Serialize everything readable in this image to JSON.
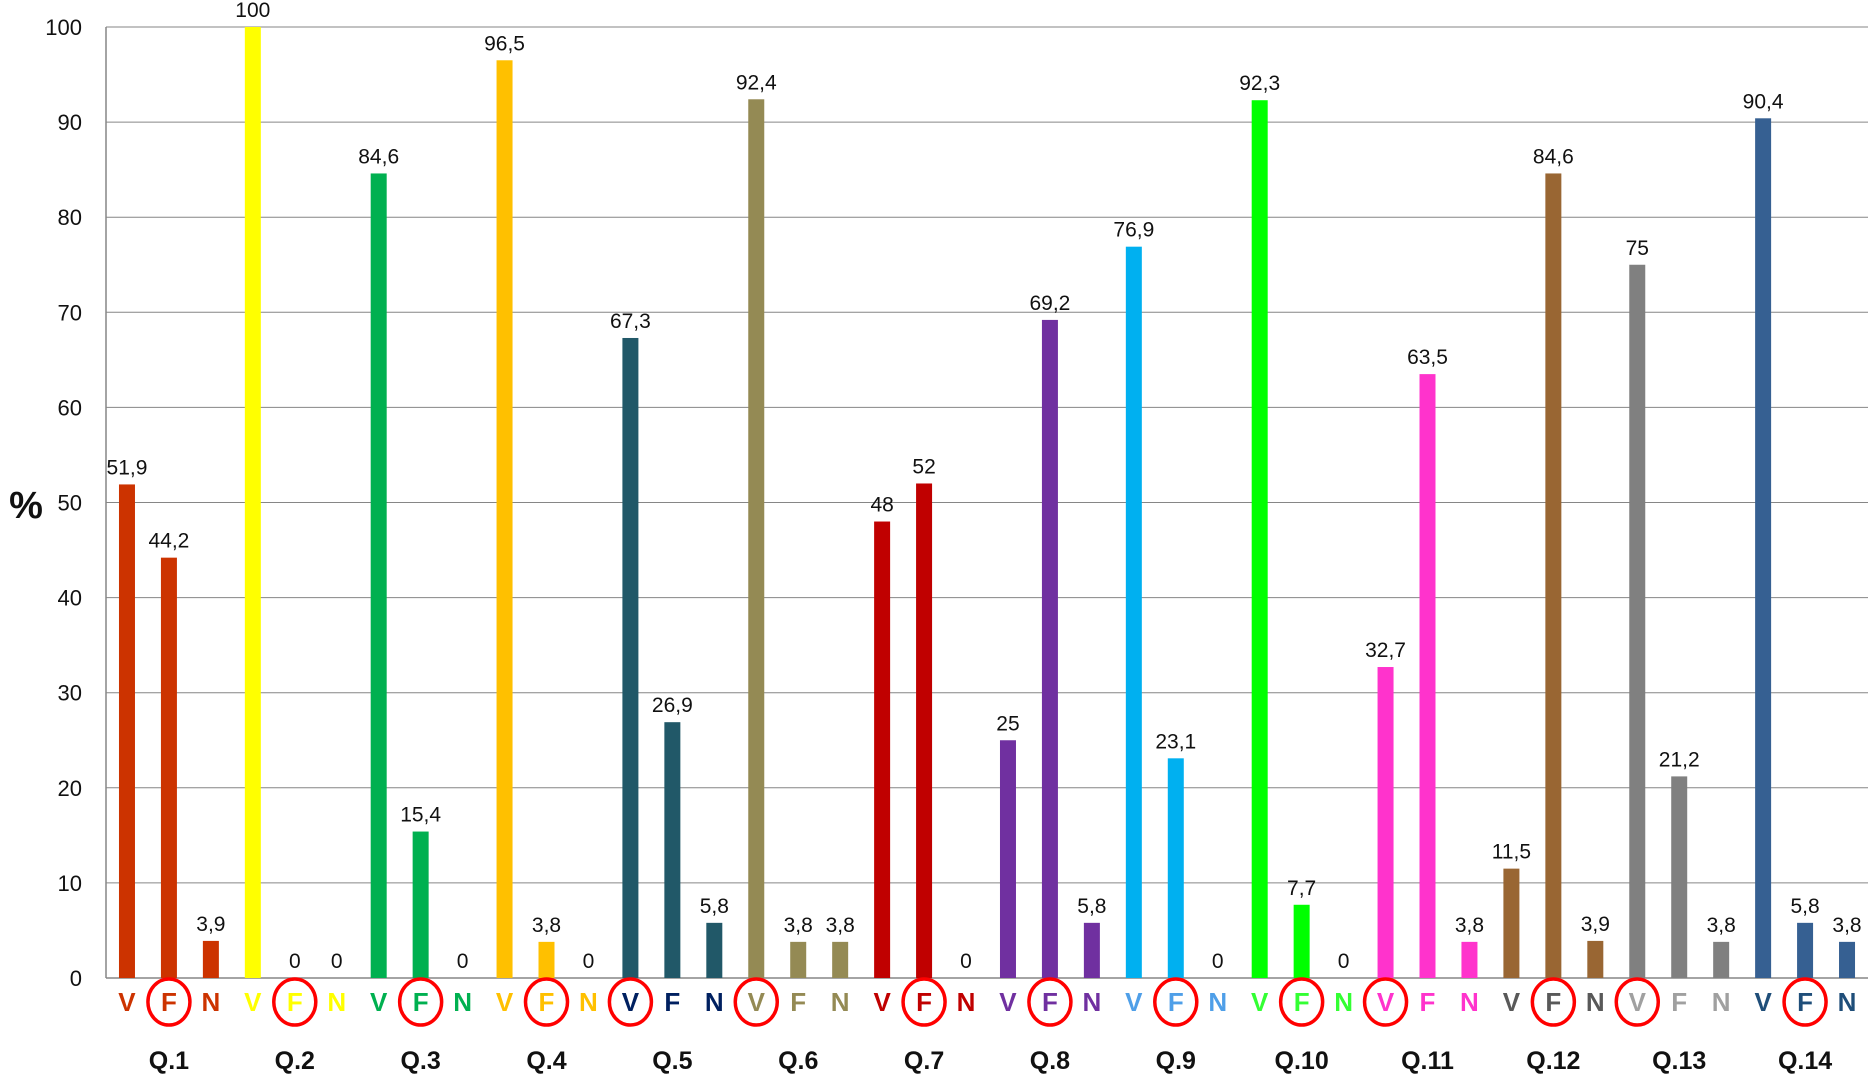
{
  "chart_data": {
    "type": "bar",
    "ylabel": "%",
    "ylim": [
      0,
      100
    ],
    "yticks": [
      "0",
      "10",
      "20",
      "30",
      "40",
      "50",
      "60",
      "70",
      "80",
      "90",
      "100"
    ],
    "grid": true,
    "groups": [
      {
        "name": "Q.1",
        "color": "#CC3300",
        "circled": "F",
        "bars": [
          {
            "cat": "V",
            "value": 51.9,
            "label": "51,9"
          },
          {
            "cat": "F",
            "value": 44.2,
            "label": "44,2"
          },
          {
            "cat": "N",
            "value": 3.9,
            "label": "3,9"
          }
        ]
      },
      {
        "name": "Q.2",
        "color": "#FFFF00",
        "circled": "F",
        "bars": [
          {
            "cat": "V",
            "value": 100,
            "label": "100"
          },
          {
            "cat": "F",
            "value": 0,
            "label": "0"
          },
          {
            "cat": "N",
            "value": 0,
            "label": "0"
          }
        ]
      },
      {
        "name": "Q.3",
        "color": "#00B050",
        "circled": "F",
        "bars": [
          {
            "cat": "V",
            "value": 84.6,
            "label": "84,6"
          },
          {
            "cat": "F",
            "value": 15.4,
            "label": "15,4"
          },
          {
            "cat": "N",
            "value": 0,
            "label": "0"
          }
        ]
      },
      {
        "name": "Q.4",
        "color": "#FFC000",
        "circled": "F",
        "bars": [
          {
            "cat": "V",
            "value": 96.5,
            "label": "96,5"
          },
          {
            "cat": "F",
            "value": 3.8,
            "label": "3,8"
          },
          {
            "cat": "N",
            "value": 0,
            "label": "0"
          }
        ]
      },
      {
        "name": "Q.5",
        "color": "#215868",
        "labelColor": "#002060",
        "circled": "V",
        "bars": [
          {
            "cat": "V",
            "value": 67.3,
            "label": "67,3"
          },
          {
            "cat": "F",
            "value": 26.9,
            "label": "26,9"
          },
          {
            "cat": "N",
            "value": 5.8,
            "label": "5,8"
          }
        ]
      },
      {
        "name": "Q.6",
        "color": "#948A54",
        "circled": "V",
        "bars": [
          {
            "cat": "V",
            "value": 92.4,
            "label": "92,4"
          },
          {
            "cat": "F",
            "value": 3.8,
            "label": "3,8"
          },
          {
            "cat": "N",
            "value": 3.8,
            "label": "3,8"
          }
        ]
      },
      {
        "name": "Q.7",
        "color": "#C00000",
        "circled": "F",
        "bars": [
          {
            "cat": "V",
            "value": 48,
            "label": "48"
          },
          {
            "cat": "F",
            "value": 52,
            "label": "52"
          },
          {
            "cat": "N",
            "value": 0,
            "label": "0"
          }
        ]
      },
      {
        "name": "Q.8",
        "color": "#7030A0",
        "circled": "F",
        "bars": [
          {
            "cat": "V",
            "value": 25,
            "label": "25"
          },
          {
            "cat": "F",
            "value": 69.2,
            "label": "69,2"
          },
          {
            "cat": "N",
            "value": 5.8,
            "label": "5,8"
          }
        ]
      },
      {
        "name": "Q.9",
        "color": "#00B0F0",
        "labelColor": "#4F9FE8",
        "circled": "F",
        "bars": [
          {
            "cat": "V",
            "value": 76.9,
            "label": "76,9"
          },
          {
            "cat": "F",
            "value": 23.1,
            "label": "23,1"
          },
          {
            "cat": "N",
            "value": 0,
            "label": "0"
          }
        ]
      },
      {
        "name": "Q.10",
        "color": "#00FF00",
        "labelColor": "#33FF33",
        "circled": "F",
        "bars": [
          {
            "cat": "V",
            "value": 92.3,
            "label": "92,3"
          },
          {
            "cat": "F",
            "value": 7.7,
            "label": "7,7"
          },
          {
            "cat": "N",
            "value": 0,
            "label": "0"
          }
        ]
      },
      {
        "name": "Q.11",
        "color": "#FF33CC",
        "circled": "V",
        "bars": [
          {
            "cat": "V",
            "value": 32.7,
            "label": "32,7"
          },
          {
            "cat": "F",
            "value": 63.5,
            "label": "63,5"
          },
          {
            "cat": "N",
            "value": 3.8,
            "label": "3,8"
          }
        ]
      },
      {
        "name": "Q.12",
        "color": "#996633",
        "labelColor": "#595959",
        "circled": "F",
        "bars": [
          {
            "cat": "V",
            "value": 11.5,
            "label": "11,5"
          },
          {
            "cat": "F",
            "value": 84.6,
            "label": "84,6"
          },
          {
            "cat": "N",
            "value": 3.9,
            "label": "3,9"
          }
        ]
      },
      {
        "name": "Q.13",
        "color": "#808080",
        "labelColor": "#A0A0A0",
        "circled": "V",
        "bars": [
          {
            "cat": "V",
            "value": 75,
            "label": "75"
          },
          {
            "cat": "F",
            "value": 21.2,
            "label": "21,2"
          },
          {
            "cat": "N",
            "value": 3.8,
            "label": "3,8"
          }
        ]
      },
      {
        "name": "Q.14",
        "color": "#366092",
        "labelColor": "#1F4E79",
        "circled": "F",
        "bars": [
          {
            "cat": "V",
            "value": 90.4,
            "label": "90,4"
          },
          {
            "cat": "F",
            "value": 5.8,
            "label": "5,8"
          },
          {
            "cat": "N",
            "value": 3.8,
            "label": "3,8"
          }
        ]
      }
    ],
    "circleColor": "#FF0000",
    "gridColor": "#868686",
    "axisColor": "#868686"
  }
}
